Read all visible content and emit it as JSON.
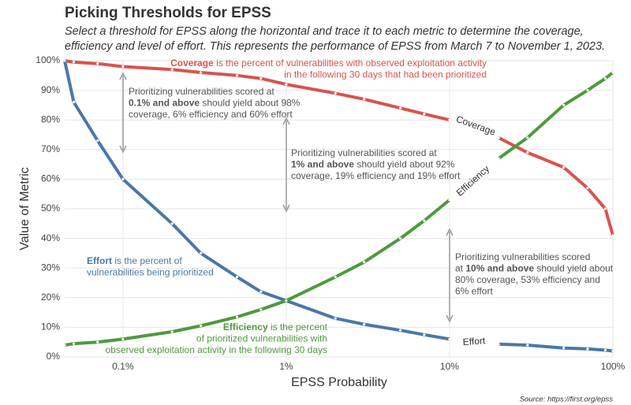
{
  "chart_data": {
    "type": "line",
    "title": "Picking Thresholds for EPSS",
    "subtitle": [
      "Select a threshold for EPSS along the horizontal and trace it to each metric to determine the coverage,",
      "efficiency and level of effort. This represents the performance of EPSS from March 7 to November 1, 2023."
    ],
    "x_label": "EPSS Probability",
    "y_label": "Value of Metric",
    "source": "Source: https://first.org/epss",
    "x_log": true,
    "grid": true,
    "xlim": [
      0.044,
      100
    ],
    "xticks": [
      {
        "value": 0.1,
        "label": "0.1%"
      },
      {
        "value": 1,
        "label": "1%"
      },
      {
        "value": 10,
        "label": "10%"
      },
      {
        "value": 100,
        "label": "100%"
      }
    ],
    "ylim": [
      0,
      100
    ],
    "yticks": [
      {
        "value": 0,
        "label": "0%"
      },
      {
        "value": 10,
        "label": "10%"
      },
      {
        "value": 20,
        "label": "20%"
      },
      {
        "value": 30,
        "label": "30%"
      },
      {
        "value": 40,
        "label": "40%"
      },
      {
        "value": 50,
        "label": "50%"
      },
      {
        "value": 60,
        "label": "60%"
      },
      {
        "value": 70,
        "label": "70%"
      },
      {
        "value": 80,
        "label": "80%"
      },
      {
        "value": 90,
        "label": "90%"
      },
      {
        "value": 100,
        "label": "100%"
      }
    ],
    "x": [
      0.044,
      0.05,
      0.07,
      0.1,
      0.2,
      0.3,
      0.5,
      0.7,
      1,
      2,
      3,
      5,
      7,
      10,
      14,
      20,
      30,
      50,
      70,
      90,
      100
    ],
    "series": [
      {
        "name": "Coverage",
        "color": "#d9534f",
        "values": [
          100,
          99.5,
          99,
          98,
          97,
          96,
          95,
          94,
          92,
          89,
          87,
          84,
          82,
          80,
          null,
          74,
          69,
          64,
          57,
          50,
          41
        ]
      },
      {
        "name": "Effort",
        "color": "#4a77a8",
        "values": [
          100,
          86,
          73,
          60,
          45,
          35,
          27,
          22,
          19,
          13,
          11,
          9,
          7.5,
          6,
          null,
          4.3,
          4,
          3,
          2.7,
          2.3,
          2
        ]
      },
      {
        "name": "Efficiency",
        "color": "#4e9a3e",
        "values": [
          4,
          4.5,
          5,
          6,
          8.5,
          10.5,
          13.5,
          16,
          19,
          27,
          32,
          40,
          46,
          53,
          null,
          67,
          74,
          85,
          90,
          94,
          96
        ]
      }
    ],
    "annotations": [
      {
        "color": "#d9534f",
        "lines": [
          [
            {
              "text": "Coverage",
              "bold": true
            },
            {
              "text": " is the percent of vulnerabilities with observed exploitation activity"
            }
          ],
          [
            {
              "text": "in the following 30 days that had been prioritized"
            }
          ]
        ]
      },
      {
        "color": "#555555",
        "lines": [
          [
            {
              "text": "Prioritizing vulnerabilities scored at"
            }
          ],
          [
            {
              "text": "0.1% and above",
              "bold": true
            },
            {
              "text": " should yield about 98%"
            }
          ],
          [
            {
              "text": "coverage, 6% efficiency and 60% effort"
            }
          ]
        ]
      },
      {
        "color": "#555555",
        "lines": [
          [
            {
              "text": "Prioritizing vulnerabilities scored at"
            }
          ],
          [
            {
              "text": "1% and above",
              "bold": true
            },
            {
              "text": " should yield about 92%"
            }
          ],
          [
            {
              "text": "coverage, 19% efficiency and 19% effort"
            }
          ]
        ]
      },
      {
        "color": "#555555",
        "lines": [
          [
            {
              "text": "Prioritizing vulnerabilities scored"
            }
          ],
          [
            {
              "text": "at "
            },
            {
              "text": "10% and above",
              "bold": true
            },
            {
              "text": " should yield about"
            }
          ],
          [
            {
              "text": "80% coverage, 53% efficiency and"
            }
          ],
          [
            {
              "text": "6% effort"
            }
          ]
        ]
      },
      {
        "color": "#4a77a8",
        "lines": [
          [
            {
              "text": "Effort",
              "bold": true
            },
            {
              "text": " is the percent of"
            }
          ],
          [
            {
              "text": "vulnerabilities being prioritized"
            }
          ]
        ]
      },
      {
        "color": "#4e9a3e",
        "lines": [
          [
            {
              "text": "Efficiency",
              "bold": true
            },
            {
              "text": " is the percent"
            }
          ],
          [
            {
              "text": "of prioritized vulnerabilities with"
            }
          ],
          [
            {
              "text": "observed exploitation activity in the following 30 days"
            }
          ]
        ]
      }
    ]
  }
}
